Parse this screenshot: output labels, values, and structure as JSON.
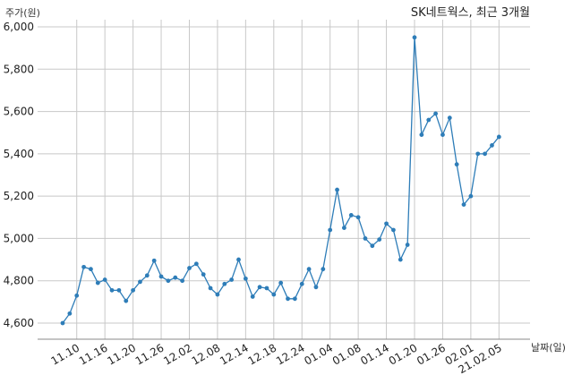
{
  "chart_data": {
    "type": "line",
    "title": "SK네트웍스, 최근 3개월",
    "ylabel": "주가(원)",
    "xlabel": "날짜(일)",
    "ylim": [
      4500,
      6000
    ],
    "yticks": [
      4600,
      4800,
      5000,
      5200,
      5400,
      5600,
      5800,
      6000
    ],
    "ytick_labels": [
      "4,600",
      "4,800",
      "5,000",
      "5,200",
      "5,400",
      "5,600",
      "5,800",
      "6,000"
    ],
    "xtick_labels": [
      "11.10",
      "11.16",
      "11.20",
      "11.26",
      "12.02",
      "12.08",
      "12.14",
      "12.18",
      "12.24",
      "01.04",
      "01.08",
      "01.14",
      "01.20",
      "01.26",
      "02.01",
      "21.02.05"
    ],
    "xtick_index": [
      2,
      6,
      10,
      14,
      18,
      22,
      26,
      30,
      34,
      38,
      42,
      46,
      50,
      54,
      58,
      62
    ],
    "grid": true,
    "values": [
      4600,
      4645,
      4730,
      4865,
      4855,
      4790,
      4805,
      4755,
      4755,
      4705,
      4755,
      4795,
      4825,
      4895,
      4820,
      4800,
      4815,
      4800,
      4860,
      4880,
      4830,
      4765,
      4735,
      4785,
      4805,
      4900,
      4810,
      4725,
      4770,
      4765,
      4735,
      4790,
      4715,
      4715,
      4785,
      4855,
      4770,
      4855,
      5040,
      5230,
      5050,
      5110,
      5100,
      5000,
      4965,
      4995,
      5070,
      5040,
      4900,
      4970,
      5950,
      5490,
      5560,
      5590,
      5490,
      5570,
      5350,
      5160,
      5200,
      5400,
      5400,
      5440,
      5480
    ]
  }
}
